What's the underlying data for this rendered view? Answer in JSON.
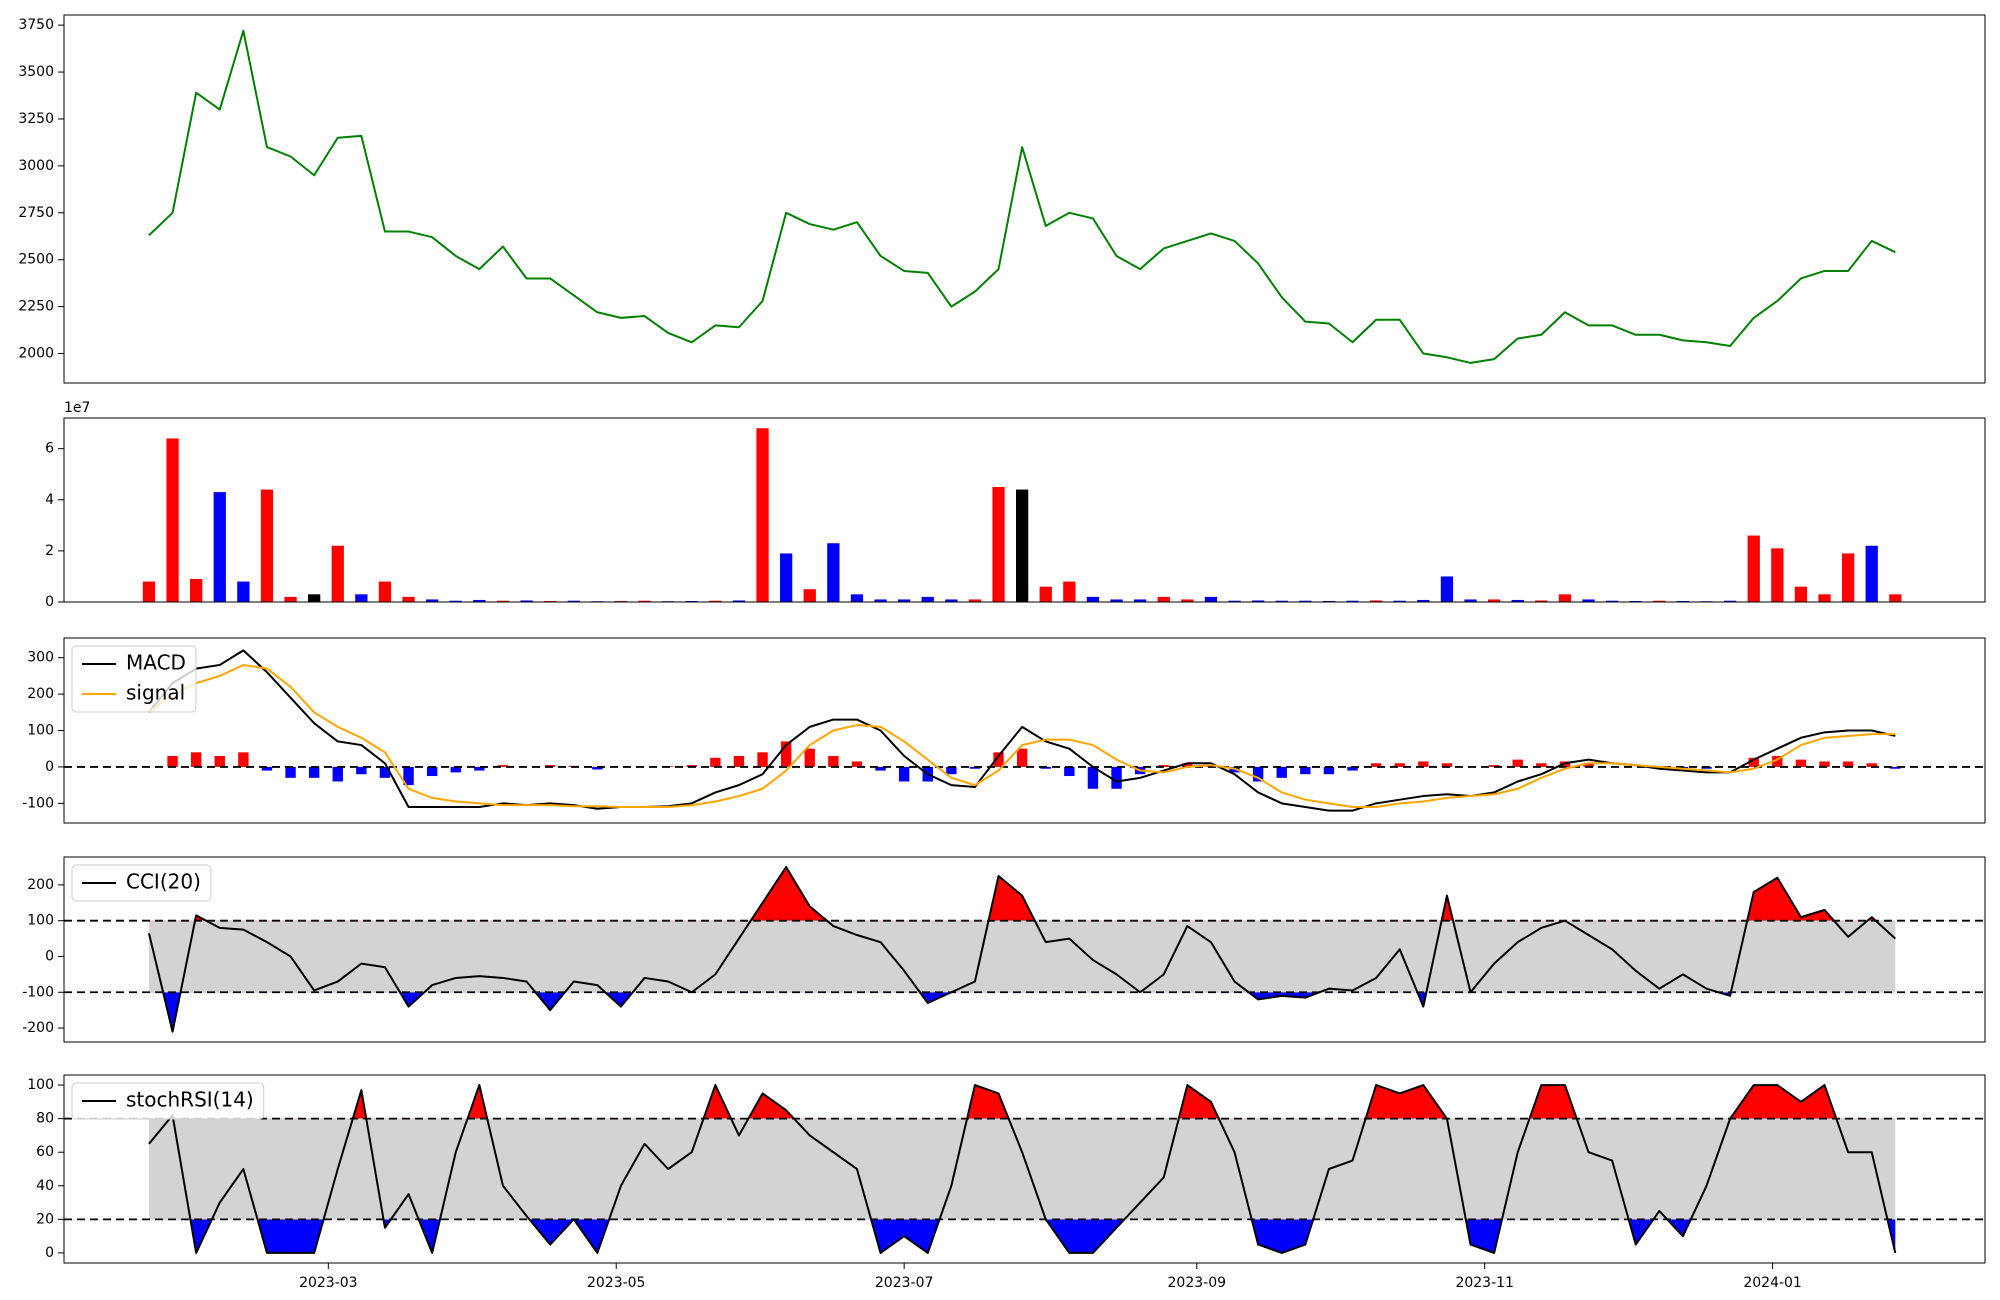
{
  "chart_data": [
    {
      "type": "line",
      "series": [
        {
          "name": "close",
          "color": "green",
          "values": [
            2630,
            2750,
            3390,
            3300,
            3720,
            3100,
            3050,
            2950,
            3150,
            3160,
            2650,
            2650,
            2620,
            2520,
            2450,
            2570,
            2400,
            2400,
            2310,
            2220,
            2190,
            2200,
            2110,
            2060,
            2150,
            2140,
            2280,
            2750,
            2690,
            2660,
            2700,
            2520,
            2440,
            2430,
            2250,
            2330,
            2450,
            3100,
            2680,
            2750,
            2720,
            2520,
            2450,
            2560,
            2600,
            2640,
            2600,
            2480,
            2300,
            2170,
            2160,
            2060,
            2180,
            2180,
            2000,
            1980,
            1950,
            1970,
            2080,
            2100,
            2220,
            2150,
            2150,
            2100,
            2100,
            2070,
            2060,
            2040,
            2190,
            2280,
            2400,
            2440,
            2440,
            2600,
            2540
          ]
        }
      ],
      "ylim": [
        1843,
        3804
      ],
      "yticks": [
        2000,
        2250,
        2500,
        2750,
        3000,
        3250,
        3500,
        3750
      ]
    },
    {
      "type": "bar",
      "values": [
        8000000,
        64000000,
        9000000,
        43000000,
        8000000,
        44000000,
        2000000,
        3000000,
        22000000,
        3000000,
        8000000,
        2000000,
        1000000,
        500000,
        800000,
        500000,
        600000,
        400000,
        500000,
        300000,
        400000,
        500000,
        300000,
        400000,
        500000,
        600000,
        68000000,
        19000000,
        5000000,
        23000000,
        3000000,
        1000000,
        1000000,
        2000000,
        1000000,
        1000000,
        45000000,
        44000000,
        6000000,
        8000000,
        2000000,
        1000000,
        1000000,
        2000000,
        1000000,
        2000000,
        500000,
        600000,
        500000,
        500000,
        400000,
        500000,
        600000,
        500000,
        800000,
        10000000,
        1000000,
        1000000,
        800000,
        600000,
        3000000,
        1000000,
        500000,
        400000,
        500000,
        400000,
        300000,
        500000,
        26000000,
        21000000,
        6000000,
        3000000,
        19000000,
        22000000,
        3000000
      ],
      "colors": [
        "red",
        "red",
        "red",
        "blue",
        "blue",
        "red",
        "red",
        "black",
        "red",
        "blue",
        "red",
        "red",
        "blue",
        "blue",
        "blue",
        "red",
        "blue",
        "red",
        "blue",
        "blue",
        "red",
        "red",
        "blue",
        "blue",
        "red",
        "blue",
        "red",
        "blue",
        "red",
        "blue",
        "blue",
        "blue",
        "blue",
        "blue",
        "blue",
        "red",
        "red",
        "black",
        "red",
        "red",
        "blue",
        "blue",
        "blue",
        "red",
        "red",
        "blue",
        "blue",
        "blue",
        "blue",
        "blue",
        "blue",
        "blue",
        "red",
        "blue",
        "blue",
        "blue",
        "blue",
        "red",
        "blue",
        "red",
        "red",
        "blue",
        "blue",
        "blue",
        "red",
        "blue",
        "blue",
        "blue",
        "red",
        "red",
        "red",
        "red",
        "red",
        "blue",
        "red"
      ],
      "offset_text": "1e7",
      "ylim": [
        0,
        72000000
      ],
      "yticks": [
        0,
        {
          "value": 20000000,
          "label": "2"
        },
        {
          "value": 40000000,
          "label": "4"
        },
        {
          "value": 60000000,
          "label": "6"
        }
      ]
    },
    {
      "type": "line",
      "series": [
        {
          "name": "MACD",
          "color": "black",
          "values": [
            150,
            230,
            270,
            280,
            320,
            260,
            190,
            120,
            70,
            60,
            10,
            -110,
            -110,
            -110,
            -110,
            -100,
            -105,
            -100,
            -105,
            -115,
            -110,
            -110,
            -108,
            -100,
            -70,
            -50,
            -20,
            60,
            110,
            130,
            130,
            100,
            30,
            -20,
            -50,
            -55,
            30,
            110,
            70,
            50,
            0,
            -40,
            -30,
            -10,
            10,
            10,
            -20,
            -70,
            -100,
            -110,
            -120,
            -120,
            -100,
            -90,
            -80,
            -75,
            -80,
            -70,
            -40,
            -20,
            10,
            20,
            10,
            5,
            -5,
            -10,
            -15,
            -15,
            20,
            50,
            80,
            95,
            100,
            100,
            85
          ]
        },
        {
          "name": "signal",
          "color": "orange",
          "values": [
            150,
            200,
            230,
            250,
            280,
            270,
            220,
            150,
            110,
            80,
            40,
            -60,
            -85,
            -95,
            -100,
            -105,
            -105,
            -105,
            -108,
            -108,
            -110,
            -110,
            -110,
            -105,
            -95,
            -80,
            -60,
            -10,
            60,
            100,
            115,
            110,
            70,
            20,
            -30,
            -50,
            -10,
            60,
            75,
            75,
            60,
            20,
            -10,
            -15,
            0,
            5,
            -5,
            -30,
            -70,
            -90,
            -100,
            -110,
            -110,
            -100,
            -95,
            -85,
            -80,
            -75,
            -60,
            -30,
            -5,
            10,
            10,
            5,
            0,
            -5,
            -10,
            -15,
            -5,
            20,
            60,
            80,
            85,
            90,
            90
          ]
        }
      ],
      "histogram": {
        "colors": [
          "red",
          "blue"
        ],
        "values": [
          0,
          30,
          40,
          30,
          40,
          -10,
          -30,
          -30,
          -40,
          -20,
          -30,
          -50,
          -25,
          -15,
          -10,
          5,
          0,
          5,
          3,
          -7,
          0,
          0,
          2,
          5,
          25,
          30,
          40,
          70,
          50,
          30,
          15,
          -10,
          -40,
          -40,
          -20,
          -5,
          40,
          50,
          -5,
          -25,
          -60,
          -60,
          -20,
          5,
          10,
          5,
          -15,
          -40,
          -30,
          -20,
          -20,
          -10,
          10,
          10,
          15,
          10,
          0,
          5,
          20,
          10,
          15,
          10,
          0,
          0,
          -5,
          -5,
          -5,
          0,
          25,
          30,
          20,
          15,
          15,
          10,
          -5
        ]
      },
      "reference_lines": [
        0
      ],
      "legend": "upper left",
      "ylim": [
        -154,
        354
      ],
      "yticks": [
        -100,
        0,
        100,
        200,
        300
      ]
    },
    {
      "type": "line",
      "series": [
        {
          "name": "CCI(20)",
          "color": "black",
          "values": [
            65,
            -210,
            115,
            80,
            75,
            40,
            0,
            -95,
            -70,
            -20,
            -30,
            -140,
            -80,
            -60,
            -55,
            -60,
            -70,
            -150,
            -70,
            -80,
            -140,
            -60,
            -70,
            -100,
            -50,
            50,
            150,
            250,
            140,
            85,
            60,
            40,
            -40,
            -130,
            -100,
            -70,
            225,
            170,
            40,
            50,
            -10,
            -50,
            -100,
            -50,
            85,
            40,
            -70,
            -120,
            -110,
            -115,
            -90,
            -95,
            -60,
            20,
            -140,
            170,
            -100,
            -20,
            40,
            80,
            100,
            60,
            20,
            -40,
            -90,
            -50,
            -90,
            -110,
            180,
            220,
            110,
            130,
            55,
            110,
            50
          ]
        }
      ],
      "reference_lines": [
        100,
        -100
      ],
      "fill_colors": {
        "above": "red",
        "between": "lightgray",
        "below": "blue"
      },
      "legend": "upper left",
      "ylim": [
        -239,
        278
      ],
      "yticks": [
        -200,
        -100,
        0,
        100,
        200
      ]
    },
    {
      "type": "line",
      "x": [
        19379,
        19384,
        19389,
        19394,
        19399,
        19404,
        19409,
        19414,
        19419,
        19424,
        19429,
        19434,
        19439,
        19444,
        19449,
        19454,
        19459,
        19464,
        19469,
        19474,
        19479,
        19484,
        19489,
        19494,
        19499,
        19504,
        19509,
        19514,
        19519,
        19524,
        19529,
        19534,
        19539,
        19544,
        19549,
        19554,
        19559,
        19564,
        19569,
        19574,
        19579,
        19584,
        19589,
        19594,
        19599,
        19604,
        19609,
        19614,
        19619,
        19624,
        19629,
        19634,
        19639,
        19644,
        19649,
        19654,
        19659,
        19664,
        19669,
        19674,
        19679,
        19684,
        19689,
        19694,
        19699,
        19704,
        19709,
        19714,
        19719,
        19724,
        19729,
        19734,
        19739,
        19744,
        19749
      ],
      "series": [
        {
          "name": "stochRSI(14)",
          "color": "black",
          "values": [
            65,
            82,
            0,
            30,
            50,
            0,
            0,
            0,
            50,
            97,
            15,
            35,
            0,
            60,
            100,
            40,
            22,
            5,
            20,
            0,
            40,
            65,
            50,
            60,
            100,
            70,
            95,
            85,
            70,
            60,
            50,
            0,
            10,
            0,
            40,
            100,
            95,
            60,
            20,
            0,
            0,
            15,
            30,
            45,
            100,
            90,
            60,
            5,
            0,
            5,
            50,
            55,
            100,
            95,
            100,
            80,
            5,
            0,
            60,
            100,
            100,
            60,
            55,
            5,
            25,
            10,
            40,
            80,
            100,
            100,
            90,
            100,
            60,
            60,
            0
          ]
        }
      ],
      "reference_lines": [
        80,
        20
      ],
      "fill_colors": {
        "above": "red",
        "between": "lightgray",
        "below": "blue"
      },
      "legend": "upper left",
      "xlim": [
        19361,
        19768
      ],
      "xticks": [
        {
          "value": 19417,
          "label": "2023-03"
        },
        {
          "value": 19478,
          "label": "2023-05"
        },
        {
          "value": 19539,
          "label": "2023-07"
        },
        {
          "value": 19601,
          "label": "2023-09"
        },
        {
          "value": 19662,
          "label": "2023-11"
        },
        {
          "value": 19723,
          "label": "2024-01"
        }
      ],
      "ylim": [
        -6,
        106
      ],
      "yticks": [
        0,
        20,
        40,
        60,
        80,
        100
      ]
    }
  ]
}
